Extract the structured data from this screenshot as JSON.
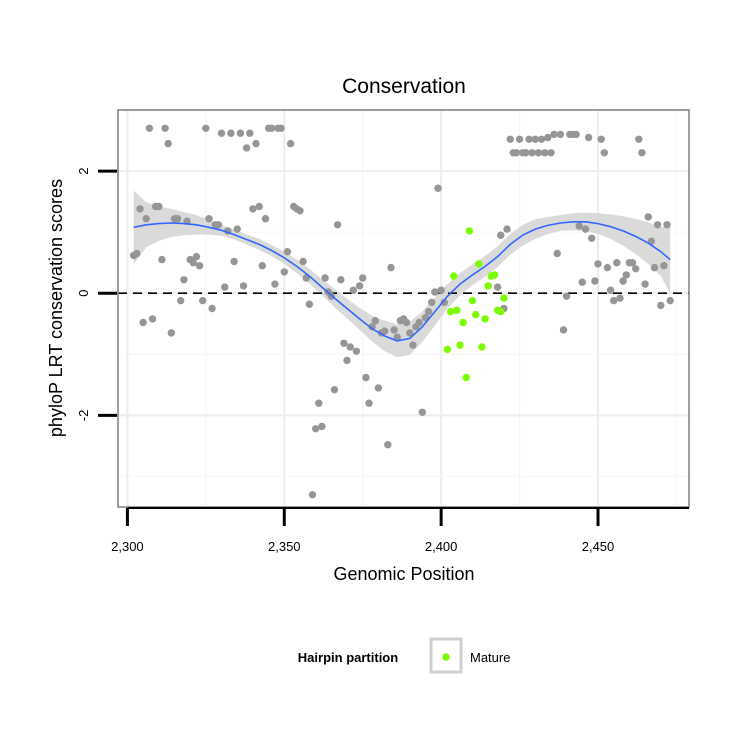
{
  "chart_data": {
    "type": "scatter",
    "title": "Conservation",
    "xlabel": "Genomic Position",
    "ylabel": "phyloP LRT conservation scores",
    "xlim": [
      2297,
      2479
    ],
    "ylim": [
      -3.5,
      3.0
    ],
    "xticks": [
      2300,
      2350,
      2400,
      2450
    ],
    "xtick_labels": [
      "2,300",
      "2,350",
      "2,400",
      "2,450"
    ],
    "yticks": [
      -2,
      0,
      2
    ],
    "ytick_labels": [
      "-2",
      "0",
      "2"
    ],
    "grid": true,
    "reference_line": {
      "y": 0,
      "style": "dashed"
    },
    "legend": {
      "position": "bottom",
      "title": "Hairpin partition",
      "entries": [
        {
          "label": "Mature",
          "color": "#7CFC00"
        }
      ]
    },
    "colors": {
      "other": "#969696",
      "mature": "#7CFC00",
      "smooth": "#3366FF",
      "ribbon": "#D3D3D3"
    },
    "series": [
      {
        "name": "Other",
        "points": [
          [
            2302,
            0.62
          ],
          [
            2303,
            0.65
          ],
          [
            2304,
            1.38
          ],
          [
            2305,
            -0.48
          ],
          [
            2306,
            1.22
          ],
          [
            2307,
            2.7
          ],
          [
            2308,
            -0.42
          ],
          [
            2309,
            1.42
          ],
          [
            2310,
            1.42
          ],
          [
            2311,
            0.55
          ],
          [
            2312,
            2.7
          ],
          [
            2313,
            2.45
          ],
          [
            2314,
            -0.65
          ],
          [
            2315,
            1.22
          ],
          [
            2316,
            1.22
          ],
          [
            2317,
            -0.12
          ],
          [
            2318,
            0.22
          ],
          [
            2319,
            1.18
          ],
          [
            2320,
            0.55
          ],
          [
            2321,
            0.5
          ],
          [
            2322,
            0.6
          ],
          [
            2323,
            0.45
          ],
          [
            2324,
            -0.12
          ],
          [
            2325,
            2.7
          ],
          [
            2326,
            1.22
          ],
          [
            2327,
            -0.25
          ],
          [
            2328,
            1.12
          ],
          [
            2329,
            1.12
          ],
          [
            2330,
            2.62
          ],
          [
            2331,
            0.1
          ],
          [
            2332,
            1.02
          ],
          [
            2333,
            2.62
          ],
          [
            2334,
            0.52
          ],
          [
            2335,
            1.05
          ],
          [
            2336,
            2.62
          ],
          [
            2337,
            0.12
          ],
          [
            2338,
            2.38
          ],
          [
            2339,
            2.62
          ],
          [
            2340,
            1.38
          ],
          [
            2341,
            2.45
          ],
          [
            2342,
            1.42
          ],
          [
            2343,
            0.45
          ],
          [
            2344,
            1.22
          ],
          [
            2345,
            2.7
          ],
          [
            2346,
            2.7
          ],
          [
            2347,
            0.15
          ],
          [
            2348,
            2.7
          ],
          [
            2349,
            2.7
          ],
          [
            2350,
            0.35
          ],
          [
            2351,
            0.68
          ],
          [
            2352,
            2.45
          ],
          [
            2353,
            1.42
          ],
          [
            2354,
            1.38
          ],
          [
            2355,
            1.35
          ],
          [
            2356,
            0.52
          ],
          [
            2357,
            0.25
          ],
          [
            2358,
            -0.18
          ],
          [
            2359,
            -3.3
          ],
          [
            2360,
            -2.22
          ],
          [
            2361,
            -1.8
          ],
          [
            2362,
            -2.18
          ],
          [
            2363,
            0.25
          ],
          [
            2364,
            0.02
          ],
          [
            2365,
            -0.05
          ],
          [
            2366,
            -1.58
          ],
          [
            2367,
            1.12
          ],
          [
            2368,
            0.22
          ],
          [
            2369,
            -0.82
          ],
          [
            2370,
            -1.1
          ],
          [
            2371,
            -0.88
          ],
          [
            2372,
            0.05
          ],
          [
            2373,
            -0.95
          ],
          [
            2374,
            0.12
          ],
          [
            2375,
            0.25
          ],
          [
            2376,
            -1.38
          ],
          [
            2377,
            -1.8
          ],
          [
            2378,
            -0.55
          ],
          [
            2379,
            -0.45
          ],
          [
            2380,
            -1.55
          ],
          [
            2381,
            -0.65
          ],
          [
            2382,
            -0.62
          ],
          [
            2383,
            -2.48
          ],
          [
            2384,
            0.42
          ],
          [
            2385,
            -0.6
          ],
          [
            2386,
            -0.72
          ],
          [
            2387,
            -0.45
          ],
          [
            2388,
            -0.42
          ],
          [
            2389,
            -0.48
          ],
          [
            2390,
            -0.65
          ],
          [
            2391,
            -0.85
          ],
          [
            2392,
            -0.55
          ],
          [
            2393,
            -0.48
          ],
          [
            2394,
            -1.95
          ],
          [
            2395,
            -0.4
          ],
          [
            2396,
            -0.3
          ],
          [
            2397,
            -0.15
          ],
          [
            2398,
            0.02
          ],
          [
            2399,
            1.72
          ],
          [
            2400,
            0.05
          ],
          [
            2401,
            -0.15
          ],
          [
            2418,
            0.1
          ],
          [
            2419,
            0.95
          ],
          [
            2420,
            -0.25
          ],
          [
            2421,
            1.05
          ],
          [
            2422,
            2.52
          ],
          [
            2423,
            2.3
          ],
          [
            2424,
            2.3
          ],
          [
            2425,
            2.52
          ],
          [
            2426,
            2.3
          ],
          [
            2427,
            2.3
          ],
          [
            2428,
            2.52
          ],
          [
            2429,
            2.3
          ],
          [
            2430,
            2.52
          ],
          [
            2431,
            2.3
          ],
          [
            2432,
            2.52
          ],
          [
            2433,
            2.3
          ],
          [
            2434,
            2.55
          ],
          [
            2435,
            2.3
          ],
          [
            2436,
            2.6
          ],
          [
            2437,
            0.65
          ],
          [
            2438,
            2.6
          ],
          [
            2439,
            -0.6
          ],
          [
            2440,
            -0.05
          ],
          [
            2441,
            2.6
          ],
          [
            2442,
            2.6
          ],
          [
            2443,
            2.6
          ],
          [
            2444,
            1.1
          ],
          [
            2445,
            0.18
          ],
          [
            2446,
            1.05
          ],
          [
            2447,
            2.55
          ],
          [
            2448,
            0.9
          ],
          [
            2449,
            0.2
          ],
          [
            2450,
            0.48
          ],
          [
            2451,
            2.52
          ],
          [
            2452,
            2.3
          ],
          [
            2453,
            0.42
          ],
          [
            2454,
            0.05
          ],
          [
            2455,
            -0.12
          ],
          [
            2456,
            0.5
          ],
          [
            2457,
            -0.08
          ],
          [
            2458,
            0.2
          ],
          [
            2459,
            0.3
          ],
          [
            2460,
            0.5
          ],
          [
            2461,
            0.5
          ],
          [
            2462,
            0.4
          ],
          [
            2463,
            2.52
          ],
          [
            2464,
            2.3
          ],
          [
            2465,
            0.15
          ],
          [
            2466,
            1.25
          ],
          [
            2467,
            0.85
          ],
          [
            2468,
            0.42
          ],
          [
            2469,
            1.12
          ],
          [
            2470,
            -0.2
          ],
          [
            2471,
            0.45
          ],
          [
            2472,
            1.12
          ],
          [
            2473,
            -0.12
          ]
        ]
      },
      {
        "name": "Mature",
        "points": [
          [
            2402,
            -0.92
          ],
          [
            2403,
            -0.3
          ],
          [
            2404,
            0.28
          ],
          [
            2405,
            -0.28
          ],
          [
            2406,
            -0.85
          ],
          [
            2407,
            -0.48
          ],
          [
            2408,
            -1.38
          ],
          [
            2409,
            1.02
          ],
          [
            2410,
            -0.12
          ],
          [
            2411,
            -0.35
          ],
          [
            2412,
            0.48
          ],
          [
            2413,
            -0.88
          ],
          [
            2414,
            -0.42
          ],
          [
            2415,
            0.12
          ],
          [
            2416,
            0.28
          ],
          [
            2417,
            0.3
          ],
          [
            2418,
            -0.28
          ],
          [
            2419,
            -0.3
          ],
          [
            2420,
            -0.08
          ]
        ]
      }
    ],
    "smooth": {
      "x": [
        2302,
        2306,
        2310,
        2314,
        2318,
        2322,
        2326,
        2330,
        2334,
        2338,
        2342,
        2346,
        2350,
        2354,
        2358,
        2362,
        2366,
        2370,
        2374,
        2378,
        2382,
        2386,
        2390,
        2394,
        2398,
        2402,
        2406,
        2410,
        2414,
        2418,
        2422,
        2426,
        2430,
        2434,
        2438,
        2442,
        2446,
        2450,
        2454,
        2458,
        2462,
        2466,
        2470,
        2473
      ],
      "y": [
        1.08,
        1.12,
        1.14,
        1.15,
        1.14,
        1.12,
        1.08,
        1.03,
        0.96,
        0.88,
        0.8,
        0.7,
        0.58,
        0.44,
        0.28,
        0.1,
        -0.08,
        -0.25,
        -0.42,
        -0.58,
        -0.7,
        -0.78,
        -0.74,
        -0.55,
        -0.3,
        -0.05,
        0.15,
        0.3,
        0.44,
        0.6,
        0.8,
        0.95,
        1.05,
        1.11,
        1.15,
        1.17,
        1.17,
        1.14,
        1.09,
        1.02,
        0.93,
        0.82,
        0.68,
        0.55
      ],
      "lower": [
        0.48,
        0.75,
        0.86,
        0.92,
        0.95,
        0.96,
        0.96,
        0.94,
        0.88,
        0.8,
        0.71,
        0.61,
        0.48,
        0.33,
        0.16,
        -0.03,
        -0.23,
        -0.41,
        -0.6,
        -0.79,
        -0.95,
        -1.05,
        -1.01,
        -0.8,
        -0.53,
        -0.25,
        -0.03,
        0.13,
        0.27,
        0.43,
        0.63,
        0.78,
        0.89,
        0.97,
        1.02,
        1.03,
        1.02,
        0.97,
        0.89,
        0.78,
        0.64,
        0.48,
        0.28,
        0.0
      ],
      "upper": [
        1.68,
        1.49,
        1.42,
        1.38,
        1.33,
        1.28,
        1.2,
        1.12,
        1.04,
        0.96,
        0.89,
        0.79,
        0.68,
        0.55,
        0.4,
        0.23,
        0.07,
        -0.09,
        -0.24,
        -0.37,
        -0.45,
        -0.51,
        -0.47,
        -0.3,
        -0.07,
        0.15,
        0.33,
        0.47,
        0.61,
        0.77,
        0.97,
        1.12,
        1.21,
        1.25,
        1.28,
        1.31,
        1.32,
        1.31,
        1.29,
        1.26,
        1.22,
        1.16,
        1.08,
        1.1
      ]
    }
  }
}
